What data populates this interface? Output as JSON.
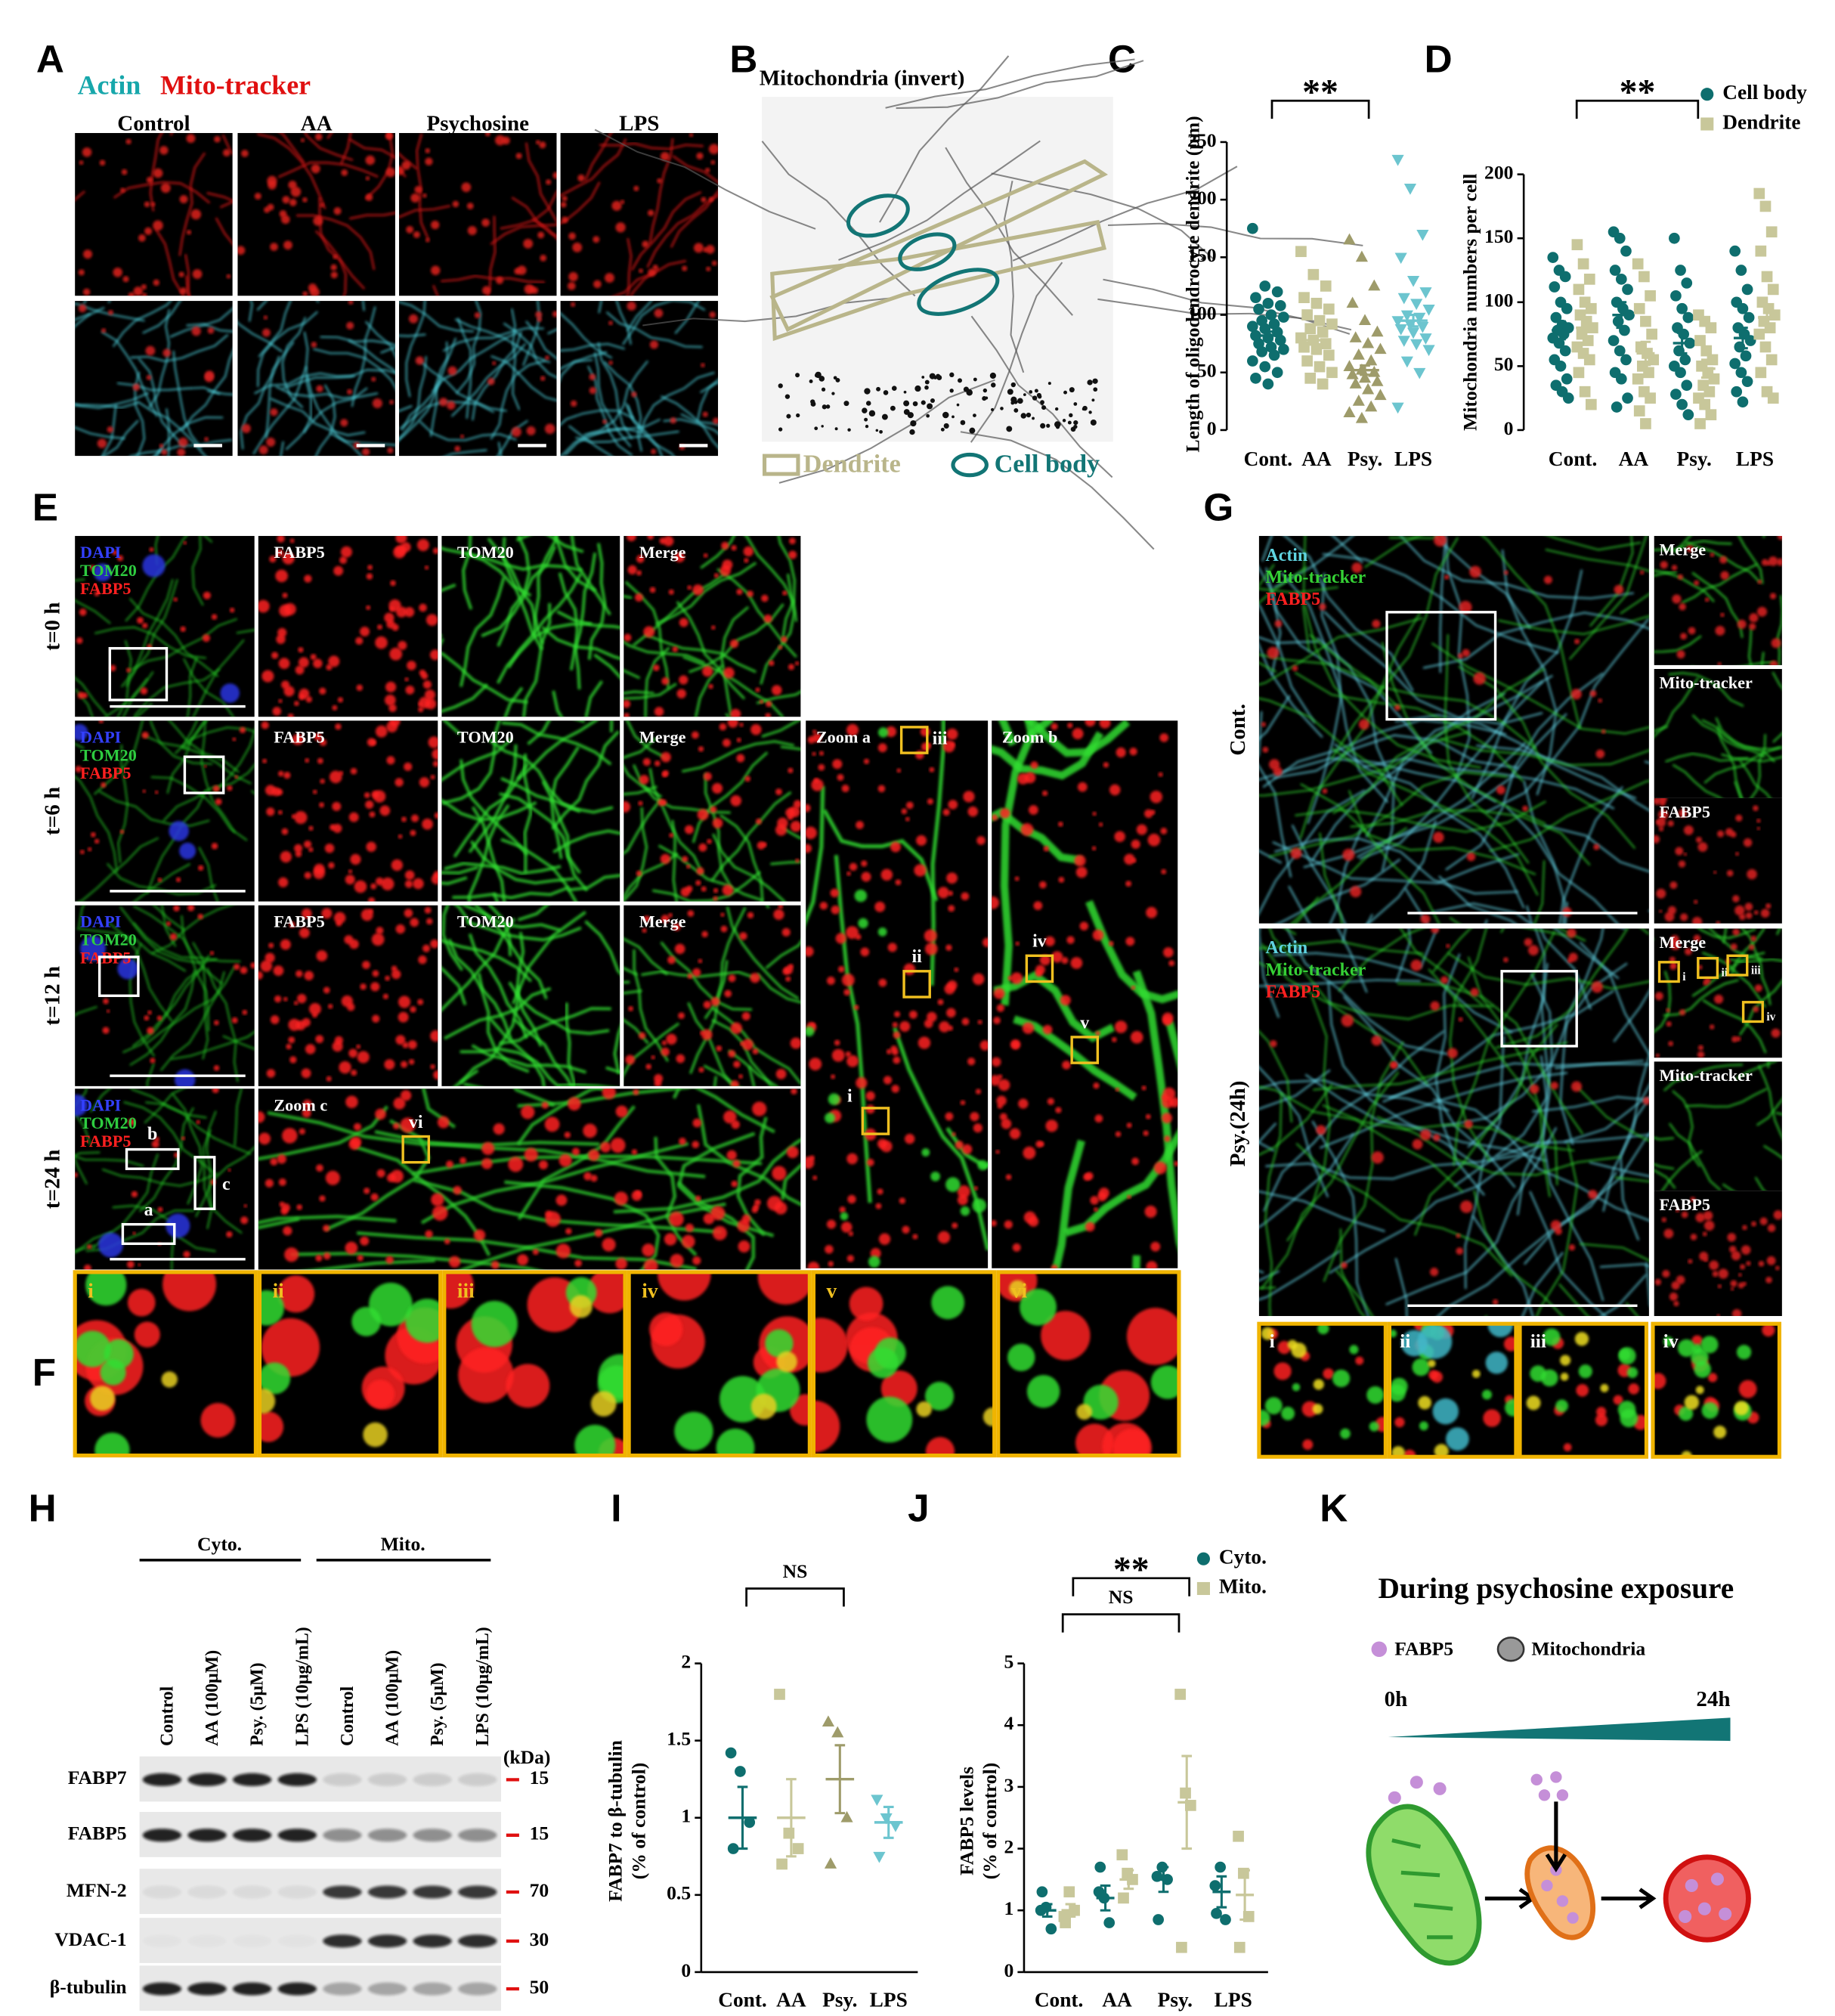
{
  "panel_labels": [
    "A",
    "B",
    "C",
    "D",
    "E",
    "F",
    "G",
    "H",
    "I",
    "J",
    "K"
  ],
  "panel_a": {
    "legend": [
      "Actin",
      "Mito-tracker"
    ],
    "columns": [
      "Control",
      "AA",
      "Psychosine",
      "LPS"
    ]
  },
  "panel_b": {
    "title": "Mitochondria (invert)",
    "legend": [
      "Dendrite",
      "Cell body"
    ]
  },
  "panel_e": {
    "rows": [
      "t=0 h",
      "t=6 h",
      "t=12 h",
      "t=24 h"
    ],
    "stains": [
      "DAPI",
      "TOM20",
      "FABP5"
    ],
    "tiles": [
      "FABP5",
      "TOM20",
      "Merge"
    ],
    "zooms": [
      "Zoom a",
      "Zoom b",
      "Zoom c"
    ],
    "regions": [
      "a",
      "b",
      "c"
    ],
    "boxes": [
      "i",
      "ii",
      "iii",
      "iv",
      "v",
      "vi"
    ]
  },
  "panel_f": {
    "tiles": [
      "i",
      "ii",
      "iii",
      "iv",
      "v",
      "vi"
    ]
  },
  "panel_g": {
    "rows": [
      "Cont.",
      "Psy.(24h)"
    ],
    "stains": [
      "Actin",
      "Mito-tracker",
      "FABP5"
    ],
    "tiles": [
      "Merge",
      "Mito-tracker",
      "FABP5"
    ],
    "insets": [
      "i",
      "ii",
      "iii",
      "iv"
    ]
  },
  "panel_h": {
    "groups": [
      "Cyto.",
      "Mito."
    ],
    "lanes": [
      "Control",
      "AA (100μM)",
      "Psy. (5μM)",
      "LPS (10μg/mL)"
    ],
    "unit": "(kDa)",
    "proteins": [
      "FABP7",
      "FABP5",
      "MFN-2",
      "VDAC-1",
      "β-tubulin"
    ],
    "markers": [
      15,
      15,
      70,
      30,
      50
    ]
  },
  "panel_k": {
    "title": "During psychosine exposure",
    "legend": [
      "FABP5",
      "Mitochondria"
    ],
    "timeline": [
      "0h",
      "24h"
    ]
  },
  "chart_data": [
    {
      "type": "strip",
      "ylabel": "Length of oligodendrocyte dendrite (μm)",
      "categories": [
        "Cont.",
        "AA",
        "Psy.",
        "LPS"
      ],
      "ylim": [
        0,
        250
      ],
      "yticks": [
        0,
        50,
        100,
        150,
        200,
        250
      ],
      "brackets": [
        {
          "label": "**",
          "between": [
            "Cont.",
            "Psy."
          ]
        }
      ],
      "series": [
        {
          "colors": [
            "#0e6e6e",
            "#c8c79a",
            "#9e9b6a",
            "#6cc5cf"
          ],
          "markers": [
            "circle",
            "square",
            "triangle",
            "triangle-down"
          ],
          "values": [
            [
              175,
              125,
              120,
              115,
              110,
              108,
              105,
              100,
              98,
              95,
              92,
              90,
              88,
              85,
              82,
              80,
              78,
              75,
              72,
              70,
              68,
              65,
              60,
              55,
              50,
              45,
              40
            ],
            [
              155,
              135,
              125,
              115,
              110,
              105,
              100,
              95,
              92,
              88,
              85,
              80,
              78,
              75,
              72,
              70,
              65,
              60,
              55,
              50,
              45,
              40
            ],
            [
              165,
              150,
              125,
              110,
              95,
              85,
              80,
              75,
              70,
              65,
              60,
              55,
              52,
              50,
              48,
              45,
              42,
              40,
              35,
              30,
              25,
              20,
              15,
              10
            ],
            [
              235,
              210,
              170,
              150,
              130,
              120,
              115,
              110,
              105,
              100,
              98,
              95,
              92,
              90,
              88,
              85,
              80,
              78,
              75,
              70,
              60,
              50,
              20
            ]
          ],
          "means": [
            82,
            78,
            52,
            95
          ],
          "sems": [
            3.5,
            3.5,
            4,
            5
          ]
        }
      ]
    },
    {
      "type": "strip",
      "ylabel": "Mitochondria numbers per cell",
      "categories": [
        "Cont.",
        "AA",
        "Psy.",
        "LPS"
      ],
      "ylim": [
        0,
        200
      ],
      "yticks": [
        0,
        50,
        100,
        150,
        200
      ],
      "brackets": [
        {
          "label": "**",
          "between": [
            "Cont.",
            "Psy."
          ]
        }
      ],
      "series": [
        {
          "name": "Cell body",
          "color": "#0e6e6e",
          "marker": "circle",
          "values": [
            [
              135,
              125,
              120,
              112,
              100,
              95,
              88,
              82,
              80,
              78,
              75,
              72,
              68,
              62,
              55,
              50,
              40,
              35,
              30,
              25
            ],
            [
              155,
              150,
              140,
              125,
              118,
              110,
              100,
              95,
              90,
              85,
              78,
              70,
              62,
              55,
              45,
              40,
              25,
              18
            ],
            [
              150,
              125,
              115,
              105,
              95,
              88,
              80,
              75,
              68,
              62,
              55,
              50,
              45,
              35,
              28,
              20,
              12
            ],
            [
              140,
              125,
              110,
              100,
              95,
              88,
              80,
              75,
              70,
              65,
              58,
              52,
              45,
              38,
              30,
              22
            ]
          ],
          "means": [
            78,
            90,
            68,
            72
          ],
          "sems": [
            7,
            10,
            8,
            8
          ]
        },
        {
          "name": "Dendrite",
          "color": "#c8c79a",
          "marker": "square",
          "values": [
            [
              145,
              130,
              118,
              110,
              100,
              95,
              90,
              85,
              80,
              75,
              70,
              65,
              60,
              55,
              45,
              30,
              20
            ],
            [
              130,
              120,
              105,
              95,
              85,
              75,
              65,
              60,
              55,
              50,
              45,
              40,
              30,
              25,
              15,
              5
            ],
            [
              90,
              85,
              80,
              70,
              62,
              55,
              50,
              45,
              40,
              35,
              30,
              25,
              20,
              12,
              5
            ],
            [
              185,
              175,
              155,
              140,
              120,
              110,
              100,
              95,
              90,
              85,
              80,
              75,
              65,
              55,
              45,
              30,
              25
            ]
          ],
          "means": [
            80,
            60,
            48,
            88
          ],
          "sems": [
            8,
            9,
            7,
            10
          ]
        }
      ]
    },
    {
      "type": "strip",
      "ylabel": [
        "FABP7 to β-tubulin",
        "(% of control)"
      ],
      "categories": [
        "Cont.",
        "AA",
        "Psy.",
        "LPS"
      ],
      "ylim": [
        0,
        2
      ],
      "yticks": [
        0,
        0.5,
        1,
        1.5,
        2
      ],
      "brackets": [
        {
          "label": "NS",
          "between": [
            "Cont.",
            "Psy."
          ]
        }
      ],
      "series": [
        {
          "colors": [
            "#0e6e6e",
            "#c8c79a",
            "#9e9b6a",
            "#6cc5cf"
          ],
          "markers": [
            "circle",
            "square",
            "triangle",
            "triangle-down"
          ],
          "values": [
            [
              1.42,
              1.3,
              0.97,
              0.8
            ],
            [
              1.8,
              0.9,
              0.8,
              0.7
            ],
            [
              1.62,
              1.55,
              1.0,
              0.7
            ],
            [
              1.12,
              1.0,
              0.95,
              0.75
            ]
          ],
          "means": [
            1.0,
            1.0,
            1.25,
            0.97
          ],
          "sems": [
            0.2,
            0.25,
            0.22,
            0.1
          ]
        }
      ]
    },
    {
      "type": "strip",
      "ylabel": [
        "FABP5 levels",
        "(% of control)"
      ],
      "categories": [
        "Cont.",
        "AA",
        "Psy.",
        "LPS"
      ],
      "ylim": [
        0,
        5
      ],
      "yticks": [
        0,
        1,
        2,
        3,
        4,
        5
      ],
      "brackets": [
        {
          "label": "NS",
          "between": [
            "Cont.",
            "Psy."
          ]
        },
        {
          "label": "**",
          "between": [
            "Cont.",
            "Psy."
          ]
        }
      ],
      "series": [
        {
          "name": "Cyto.",
          "color": "#0e6e6e",
          "marker": "circle",
          "values": [
            [
              1.0,
              1.05,
              0.7,
              1.3
            ],
            [
              1.3,
              1.2,
              0.8,
              1.7
            ],
            [
              1.55,
              1.7,
              1.5,
              0.85
            ],
            [
              1.4,
              1.7,
              0.85,
              0.95
            ]
          ],
          "means": [
            1.0,
            1.2,
            1.5,
            1.3
          ],
          "sems": [
            0.1,
            0.2,
            0.2,
            0.25
          ]
        },
        {
          "name": "Mito.",
          "color": "#c8c79a",
          "marker": "square",
          "values": [
            [
              0.9,
              1.3,
              1.0,
              0.8
            ],
            [
              1.9,
              1.6,
              1.5,
              1.2
            ],
            [
              4.5,
              2.9,
              2.7,
              0.4
            ],
            [
              2.2,
              1.6,
              0.9,
              0.4
            ]
          ],
          "means": [
            1.0,
            1.5,
            2.75,
            1.25
          ],
          "sems": [
            0.1,
            0.15,
            0.75,
            0.4
          ]
        }
      ]
    }
  ]
}
